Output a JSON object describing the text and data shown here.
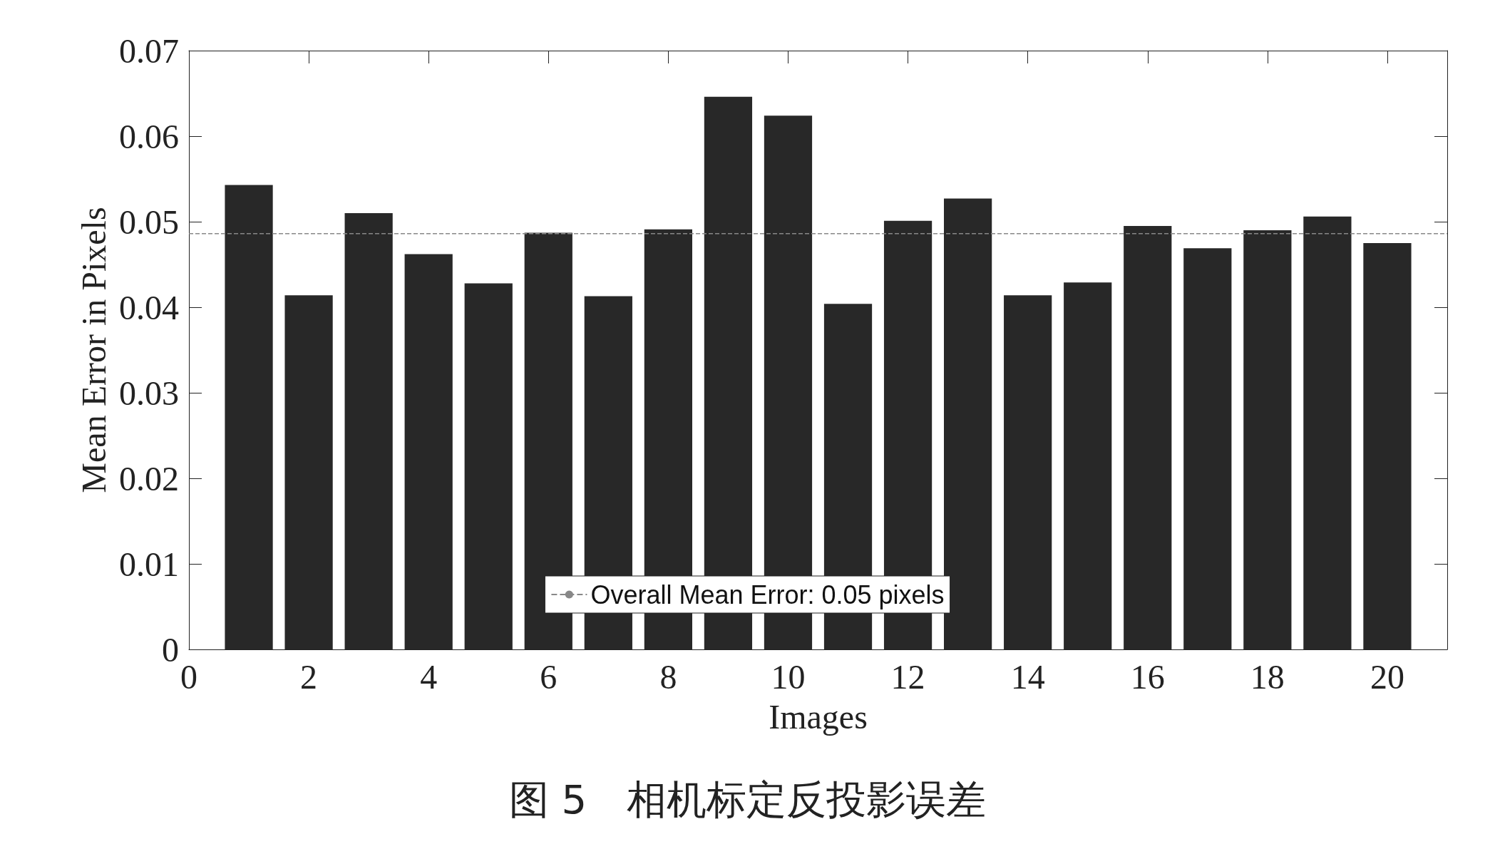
{
  "chart_data": {
    "type": "bar",
    "title": "图 5　相机标定反投影误差",
    "xlabel": "Images",
    "ylabel": "Mean Error in Pixels",
    "x": [
      1,
      2,
      3,
      4,
      5,
      6,
      7,
      8,
      9,
      10,
      11,
      12,
      13,
      14,
      15,
      16,
      17,
      18,
      19,
      20
    ],
    "values": [
      0.0543,
      0.0414,
      0.051,
      0.0462,
      0.0428,
      0.0487,
      0.0413,
      0.0491,
      0.0646,
      0.0624,
      0.0404,
      0.0501,
      0.0527,
      0.0414,
      0.0429,
      0.0495,
      0.0469,
      0.049,
      0.0506,
      0.0475
    ],
    "color": "#282828",
    "xlim": [
      0,
      21
    ],
    "xticks": [
      0,
      2,
      4,
      6,
      8,
      10,
      12,
      14,
      16,
      18,
      20
    ],
    "ylim": [
      0,
      0.07
    ],
    "yticks": [
      0,
      0.01,
      0.02,
      0.03,
      0.04,
      0.05,
      0.06,
      0.07
    ],
    "ref_lines": [
      {
        "axis": "y",
        "value": 0.0486,
        "label": "Overall Mean Error: 0.05 pixels",
        "color": "#888888",
        "line_style": "dashed"
      }
    ],
    "legend": "bottom",
    "grid": false
  }
}
